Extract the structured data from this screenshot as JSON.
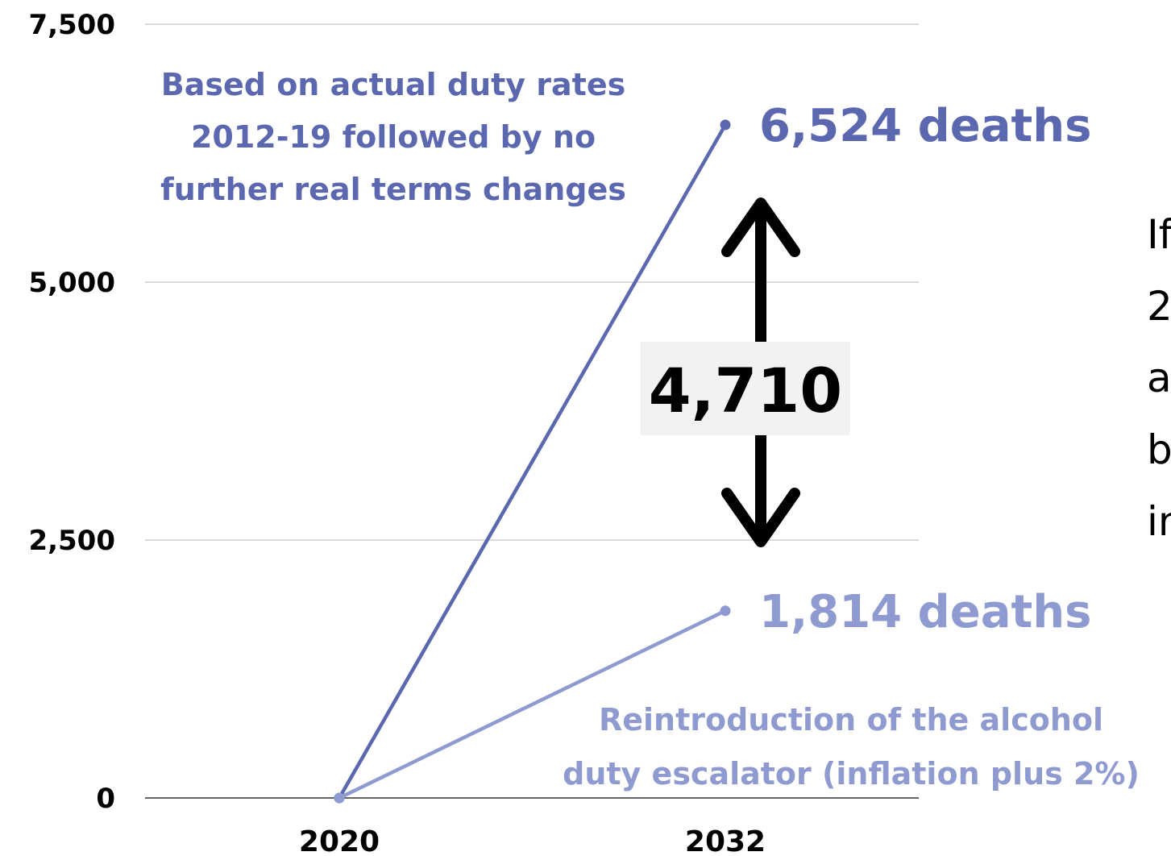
{
  "colors": {
    "series_high": "#5b68b0",
    "series_low": "#8f9bd0",
    "grid": "#c8c8c8",
    "axis": "#333333",
    "diff_box": "#f2f2f2"
  },
  "chart_data": {
    "type": "line",
    "x": [
      "2020",
      "2032"
    ],
    "ylim": [
      0,
      7500
    ],
    "y_ticks": [
      "0",
      "2,500",
      "5,000",
      "7,500"
    ],
    "y_tick_values": [
      0,
      2500,
      5000,
      7500
    ],
    "grid": true,
    "series": [
      {
        "key": "high",
        "values": [
          0,
          6524
        ],
        "end_label": "6,524 deaths",
        "annotation": [
          "Based on actual duty rates",
          "2012-19 followed by no",
          "further real terms changes"
        ]
      },
      {
        "key": "low",
        "values": [
          0,
          1814
        ],
        "end_label": "1,814 deaths",
        "annotation": [
          "Reintroduction of the alcohol",
          "duty escalator (inflation plus 2%)"
        ]
      }
    ],
    "difference": {
      "value": 4710,
      "label": "4,710"
    }
  },
  "side_text": [
    "If",
    "2",
    "a",
    "b",
    "in"
  ]
}
